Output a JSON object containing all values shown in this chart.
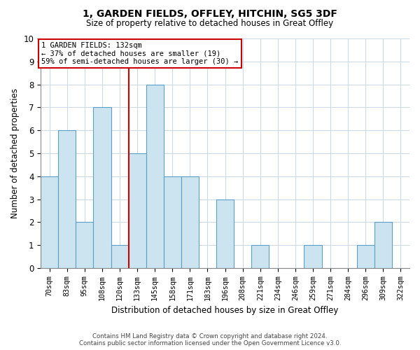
{
  "title_line1": "1, GARDEN FIELDS, OFFLEY, HITCHIN, SG5 3DF",
  "title_line2": "Size of property relative to detached houses in Great Offley",
  "xlabel": "Distribution of detached houses by size in Great Offley",
  "ylabel": "Number of detached properties",
  "bar_labels": [
    "70sqm",
    "83sqm",
    "95sqm",
    "108sqm",
    "120sqm",
    "133sqm",
    "145sqm",
    "158sqm",
    "171sqm",
    "183sqm",
    "196sqm",
    "208sqm",
    "221sqm",
    "234sqm",
    "246sqm",
    "259sqm",
    "271sqm",
    "284sqm",
    "296sqm",
    "309sqm",
    "322sqm"
  ],
  "bar_values": [
    4,
    6,
    2,
    7,
    1,
    5,
    8,
    4,
    4,
    0,
    3,
    0,
    1,
    0,
    0,
    1,
    0,
    0,
    1,
    2,
    0
  ],
  "bar_color": "#cce4f0",
  "bar_edge_color": "#5a9fc5",
  "highlight_bar_index": 5,
  "highlight_color": "#cc0000",
  "red_line_x": 4.5,
  "annotation_title": "1 GARDEN FIELDS: 132sqm",
  "annotation_line1": "← 37% of detached houses are smaller (19)",
  "annotation_line2": "59% of semi-detached houses are larger (30) →",
  "annotation_box_color": "#ffffff",
  "annotation_box_edge_color": "#cc0000",
  "ylim": [
    0,
    10
  ],
  "yticks": [
    0,
    1,
    2,
    3,
    4,
    5,
    6,
    7,
    8,
    9,
    10
  ],
  "footer_line1": "Contains HM Land Registry data © Crown copyright and database right 2024.",
  "footer_line2": "Contains public sector information licensed under the Open Government Licence v3.0.",
  "background_color": "#ffffff",
  "grid_color": "#c8d8e8"
}
